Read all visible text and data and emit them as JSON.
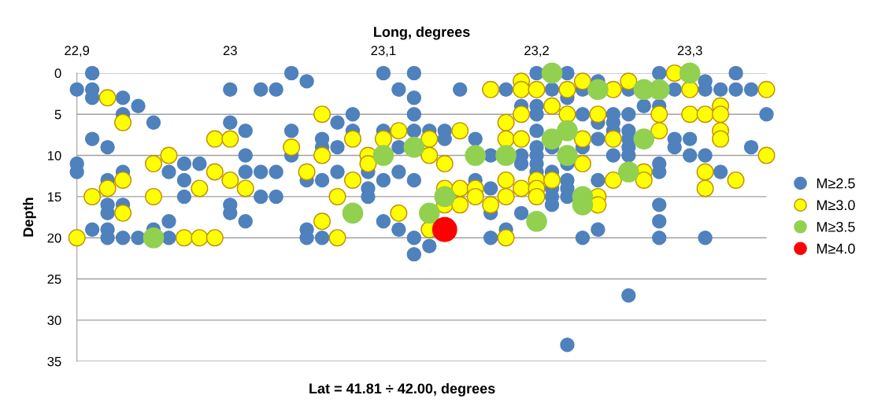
{
  "chart_data": {
    "type": "scatter",
    "xlabel": "Long, degrees",
    "ylabel": "Depth",
    "annotations": [
      "Lat = 41.81 ÷ 42.00, degrees"
    ],
    "xlim": [
      22.9,
      23.35
    ],
    "xticks": [
      {
        "value": 22.9,
        "label": "22,9"
      },
      {
        "value": 23.0,
        "label": "23"
      },
      {
        "value": 23.1,
        "label": "23,1"
      },
      {
        "value": 23.2,
        "label": "23,2"
      },
      {
        "value": 23.3,
        "label": "23,3"
      }
    ],
    "ylim": [
      35,
      0
    ],
    "yticks": [
      0,
      5,
      10,
      15,
      20,
      25,
      30,
      35
    ],
    "grid": "y",
    "legend": "right",
    "marker": "circle",
    "series": [
      {
        "name": "M≥2.5",
        "color": "#4f81bd",
        "x": [
          22.91,
          22.9,
          22.91,
          22.91,
          22.93,
          22.93,
          22.94,
          22.95,
          22.91,
          22.92,
          22.9,
          22.9,
          22.93,
          22.92,
          22.92,
          22.92,
          22.93,
          22.91,
          22.92,
          22.92,
          22.93,
          22.94,
          22.95,
          22.96,
          22.96,
          22.96,
          22.97,
          22.97,
          22.97,
          22.98,
          23.0,
          23.0,
          23.01,
          23.01,
          23.01,
          23.0,
          23.0,
          23.01,
          23.02,
          23.03,
          23.02,
          23.03,
          23.02,
          23.03,
          23.04,
          23.04,
          23.04,
          23.05,
          23.06,
          23.06,
          23.07,
          23.07,
          23.08,
          23.08,
          23.07,
          23.05,
          23.06,
          23.09,
          23.09,
          23.09,
          23.1,
          23.1,
          23.1,
          23.1,
          23.11,
          23.11,
          23.11,
          23.11,
          23.12,
          23.12,
          23.12,
          23.12,
          23.12,
          23.12,
          23.12,
          23.13,
          23.13,
          23.14,
          23.14,
          23.15,
          23.16,
          23.16,
          23.17,
          23.17,
          23.17,
          23.17,
          23.18,
          23.18,
          23.19,
          23.19,
          23.19,
          23.19,
          23.2,
          23.05,
          23.05,
          23.06,
          23.22,
          23.21,
          23.22,
          23.2,
          23.2,
          23.2,
          23.2,
          23.2,
          23.2,
          23.2,
          23.21,
          23.21,
          23.21,
          23.21,
          23.21,
          23.22,
          23.22,
          23.22,
          23.22,
          23.23,
          23.23,
          23.23,
          23.23,
          23.24,
          23.24,
          23.24,
          23.24,
          23.24,
          23.25,
          23.25,
          23.25,
          23.25,
          23.26,
          23.26,
          23.26,
          23.26,
          23.26,
          23.26,
          23.26,
          23.27,
          23.28,
          23.28,
          23.28,
          23.28,
          23.28,
          23.28,
          23.28,
          23.29,
          23.29,
          23.29,
          23.3,
          23.3,
          23.31,
          23.31,
          23.31,
          23.31,
          23.32,
          23.32,
          23.33,
          23.33,
          23.34,
          23.34,
          23.35,
          23.22
        ],
        "values": [
          0,
          2,
          2,
          3,
          3,
          5,
          4,
          6,
          8,
          9,
          11,
          12,
          12,
          13,
          16,
          17,
          16,
          19,
          19,
          20,
          20,
          20,
          19,
          20,
          18,
          12,
          11,
          13,
          15,
          11,
          2,
          6,
          7,
          10,
          12,
          16,
          17,
          18,
          2,
          2,
          12,
          12,
          15,
          15,
          0,
          7,
          10,
          1,
          8,
          9,
          6,
          9,
          5,
          7,
          12,
          13,
          13,
          14,
          15,
          12,
          7,
          0,
          13,
          18,
          2,
          9,
          12,
          19,
          0,
          3,
          5,
          7,
          13,
          20,
          22,
          21,
          7,
          7,
          8,
          2,
          8,
          13,
          10,
          14,
          17,
          20,
          2,
          19,
          4,
          10,
          11,
          17,
          0,
          19,
          20,
          20,
          0,
          2,
          3,
          4,
          5,
          7,
          9,
          10,
          11,
          12,
          9,
          12,
          14,
          15,
          16,
          11,
          13,
          14,
          15,
          2,
          5,
          9,
          20,
          1,
          6,
          8,
          13,
          19,
          5,
          6,
          7,
          10,
          2,
          5,
          7,
          8,
          9,
          10,
          27,
          4,
          0,
          4,
          11,
          12,
          16,
          18,
          20,
          2,
          8,
          9,
          8,
          10,
          1,
          2,
          10,
          20,
          2,
          12,
          0,
          2,
          2,
          9,
          5,
          33
        ]
      },
      {
        "name": "M≥3.0",
        "color": "#ffff00",
        "x": [
          22.92,
          22.93,
          22.9,
          22.91,
          22.92,
          22.93,
          22.93,
          22.95,
          22.96,
          22.95,
          22.98,
          22.99,
          23.0,
          22.99,
          23.0,
          23.01,
          22.97,
          22.98,
          22.99,
          23.04,
          23.06,
          23.05,
          23.06,
          23.08,
          23.08,
          23.07,
          23.06,
          23.07,
          23.09,
          23.09,
          23.1,
          23.11,
          23.11,
          23.13,
          23.13,
          23.14,
          23.15,
          23.14,
          23.14,
          23.15,
          23.15,
          23.16,
          23.16,
          23.17,
          23.18,
          23.18,
          23.18,
          23.13,
          23.17,
          23.18,
          23.18,
          23.19,
          23.19,
          23.19,
          23.19,
          23.19,
          23.2,
          23.21,
          23.22,
          23.22,
          23.23,
          23.23,
          23.23,
          23.24,
          23.25,
          23.26,
          23.25,
          23.25,
          23.24,
          23.24,
          23.2,
          23.2,
          23.2,
          23.21,
          23.27,
          23.27,
          23.28,
          23.28,
          23.29,
          23.3,
          23.3,
          23.31,
          23.32,
          23.32,
          23.32,
          23.32,
          23.31,
          23.31,
          23.33,
          23.35,
          23.35
        ],
        "values": [
          3,
          6,
          20,
          15,
          14,
          13,
          17,
          11,
          10,
          15,
          14,
          8,
          8,
          12,
          13,
          14,
          20,
          20,
          20,
          9,
          5,
          12,
          10,
          8,
          13,
          15,
          18,
          20,
          10,
          11,
          8,
          7,
          17,
          8,
          10,
          11,
          7,
          14,
          16,
          14,
          16,
          14,
          15,
          16,
          13,
          15,
          20,
          19,
          2,
          6,
          8,
          1,
          2,
          5,
          8,
          14,
          2,
          4,
          2,
          5,
          1,
          8,
          11,
          5,
          2,
          1,
          8,
          13,
          15,
          16,
          13,
          14,
          15,
          13,
          12,
          13,
          5,
          7,
          0,
          2,
          5,
          5,
          4,
          5,
          7,
          8,
          12,
          14,
          13,
          2,
          10
        ]
      },
      {
        "name": "M≥3.5",
        "color": "#92d050",
        "x": [
          22.95,
          23.1,
          23.12,
          23.08,
          23.14,
          23.13,
          23.16,
          23.18,
          23.21,
          23.24,
          23.27,
          23.28,
          23.3,
          23.21,
          23.22,
          23.22,
          23.27,
          23.26,
          23.23,
          23.23,
          23.2
        ],
        "values": [
          20,
          10,
          9,
          17,
          15,
          17,
          10,
          10,
          0,
          2,
          2,
          2,
          0,
          8,
          7,
          10,
          8,
          12,
          15,
          16,
          18
        ]
      },
      {
        "name": "M≥4.0",
        "color": "#ff0000",
        "x": [
          23.14
        ],
        "values": [
          19
        ]
      }
    ]
  }
}
